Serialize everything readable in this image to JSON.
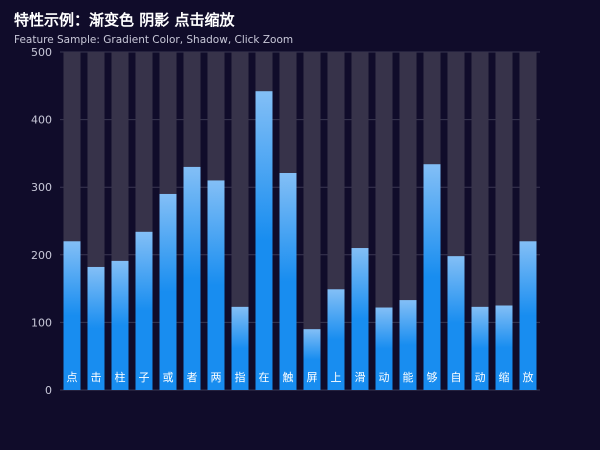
{
  "header": {
    "title": "特性示例：渐变色 阴影 点击缩放",
    "subtitle": "Feature Sample: Gradient Color, Shadow, Click Zoom"
  },
  "colors": {
    "background": "#100c2a",
    "bar_top": "#83bff6",
    "bar_mid": "#188df0",
    "bar_bottom": "#188df0",
    "shadow_bar": "#37334a",
    "grid": "#3a3752",
    "axis_label": "#c8c8d8",
    "bar_label": "#ffffff"
  },
  "chart_data": {
    "type": "bar",
    "title": "特性示例：渐变色 阴影 点击缩放",
    "subtitle": "Feature Sample: Gradient Color, Shadow, Click Zoom",
    "categories": [
      "点",
      "击",
      "柱",
      "子",
      "或",
      "者",
      "两",
      "指",
      "在",
      "触",
      "屏",
      "上",
      "滑",
      "动",
      "能",
      "够",
      "自",
      "动",
      "缩",
      "放"
    ],
    "values": [
      220,
      182,
      191,
      234,
      290,
      330,
      310,
      123,
      442,
      321,
      90,
      149,
      210,
      122,
      133,
      334,
      198,
      123,
      125,
      220
    ],
    "shadow_value": 500,
    "ylim": [
      0,
      500
    ],
    "yticks": [
      0,
      100,
      200,
      300,
      400,
      500
    ],
    "grid": true,
    "category_labels_inside_bars": true
  }
}
